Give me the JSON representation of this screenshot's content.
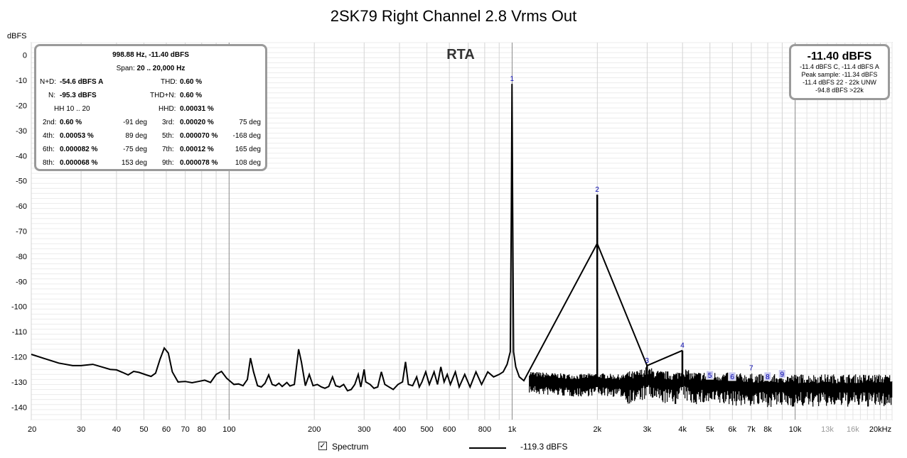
{
  "chart_data": {
    "type": "line",
    "title": "2SK79 Right Channel 2.8 Vrms Out",
    "ylabel": "dBFS",
    "xscale": "log",
    "xlim": [
      20,
      22000
    ],
    "ylim": [
      -145,
      5
    ],
    "y_ticks": [
      0,
      -10,
      -20,
      -30,
      -40,
      -50,
      -60,
      -70,
      -80,
      -90,
      -100,
      -110,
      -120,
      -130,
      -140
    ],
    "x_ticks": [
      {
        "v": 20,
        "label": "20"
      },
      {
        "v": 30,
        "label": "30"
      },
      {
        "v": 40,
        "label": "40"
      },
      {
        "v": 50,
        "label": "50"
      },
      {
        "v": 60,
        "label": "60"
      },
      {
        "v": 70,
        "label": "70"
      },
      {
        "v": 80,
        "label": "80"
      },
      {
        "v": 100,
        "label": "100"
      },
      {
        "v": 200,
        "label": "200"
      },
      {
        "v": 300,
        "label": "300"
      },
      {
        "v": 400,
        "label": "400"
      },
      {
        "v": 500,
        "label": "500"
      },
      {
        "v": 600,
        "label": "600"
      },
      {
        "v": 800,
        "label": "800"
      },
      {
        "v": 1000,
        "label": "1k"
      },
      {
        "v": 2000,
        "label": "2k"
      },
      {
        "v": 3000,
        "label": "3k"
      },
      {
        "v": 4000,
        "label": "4k"
      },
      {
        "v": 5000,
        "label": "5k"
      },
      {
        "v": 6000,
        "label": "6k"
      },
      {
        "v": 7000,
        "label": "7k"
      },
      {
        "v": 8000,
        "label": "8k"
      },
      {
        "v": 10000,
        "label": "10k"
      },
      {
        "v": 13000,
        "label": "13k",
        "faint": true
      },
      {
        "v": 16000,
        "label": "16k",
        "faint": true
      },
      {
        "v": 20000,
        "label": "20kHz"
      }
    ],
    "grid": true,
    "overlay_label": "RTA",
    "series": [
      {
        "name": "Spectrum",
        "color": "#000000",
        "points": [
          [
            20,
            -119
          ],
          [
            22,
            -120.5
          ],
          [
            25,
            -122.5
          ],
          [
            28,
            -123.5
          ],
          [
            30,
            -123.5
          ],
          [
            33,
            -123
          ],
          [
            36,
            -124.2
          ],
          [
            38,
            -125
          ],
          [
            40,
            -125.2
          ],
          [
            42,
            -126.2
          ],
          [
            44,
            -127.2
          ],
          [
            46,
            -125.8
          ],
          [
            48,
            -126.2
          ],
          [
            51,
            -127.2
          ],
          [
            53,
            -127.8
          ],
          [
            55,
            -126.5
          ],
          [
            57,
            -121
          ],
          [
            59,
            -116.5
          ],
          [
            61,
            -118.5
          ],
          [
            63,
            -126
          ],
          [
            66,
            -130
          ],
          [
            70,
            -129.8
          ],
          [
            74,
            -130.3
          ],
          [
            78,
            -129.8
          ],
          [
            82,
            -129.3
          ],
          [
            86,
            -130.2
          ],
          [
            90,
            -127
          ],
          [
            94,
            -125.8
          ],
          [
            98,
            -128.5
          ],
          [
            104,
            -131
          ],
          [
            108,
            -130.8
          ],
          [
            112,
            -131.5
          ],
          [
            116,
            -129
          ],
          [
            119,
            -120.5
          ],
          [
            122,
            -126
          ],
          [
            126,
            -131.5
          ],
          [
            130,
            -132
          ],
          [
            134,
            -130.5
          ],
          [
            138,
            -127.2
          ],
          [
            142,
            -131
          ],
          [
            146,
            -131.5
          ],
          [
            150,
            -130.5
          ],
          [
            154,
            -131.8
          ],
          [
            160,
            -130.2
          ],
          [
            164,
            -131.6
          ],
          [
            170,
            -131
          ],
          [
            176,
            -117
          ],
          [
            180,
            -122
          ],
          [
            186,
            -131.5
          ],
          [
            192,
            -127
          ],
          [
            198,
            -131.5
          ],
          [
            205,
            -131
          ],
          [
            212,
            -132
          ],
          [
            218,
            -132.5
          ],
          [
            225,
            -131.8
          ],
          [
            232,
            -128
          ],
          [
            238,
            -131.5
          ],
          [
            246,
            -132
          ],
          [
            254,
            -131
          ],
          [
            262,
            -133.5
          ],
          [
            270,
            -133
          ],
          [
            278,
            -131
          ],
          [
            286,
            -127
          ],
          [
            292,
            -132
          ],
          [
            300,
            -125
          ],
          [
            304,
            -130
          ],
          [
            315,
            -131
          ],
          [
            325,
            -132.5
          ],
          [
            335,
            -132
          ],
          [
            345,
            -126
          ],
          [
            355,
            -131
          ],
          [
            365,
            -131.8
          ],
          [
            380,
            -133
          ],
          [
            395,
            -131
          ],
          [
            410,
            -130
          ],
          [
            420,
            -122
          ],
          [
            430,
            -131
          ],
          [
            445,
            -131.5
          ],
          [
            460,
            -128
          ],
          [
            470,
            -132
          ],
          [
            480,
            -130
          ],
          [
            495,
            -126
          ],
          [
            510,
            -131
          ],
          [
            530,
            -126
          ],
          [
            545,
            -131
          ],
          [
            560,
            -124
          ],
          [
            575,
            -130
          ],
          [
            590,
            -127
          ],
          [
            605,
            -131
          ],
          [
            630,
            -126
          ],
          [
            650,
            -132
          ],
          [
            680,
            -127
          ],
          [
            710,
            -132
          ],
          [
            745,
            -126
          ],
          [
            780,
            -131
          ],
          [
            820,
            -126
          ],
          [
            860,
            -128
          ],
          [
            900,
            -127
          ],
          [
            930,
            -126
          ],
          [
            960,
            -123
          ],
          [
            985,
            -118
          ],
          [
            994,
            -60
          ],
          [
            999,
            -11.4
          ],
          [
            1004,
            -60
          ],
          [
            1012,
            -118
          ],
          [
            1030,
            -124
          ],
          [
            1060,
            -128
          ],
          [
            1100,
            -129.5
          ],
          [
            1200,
            -130.5
          ],
          [
            1400,
            -131
          ],
          [
            1700,
            -131.5
          ],
          [
            1985,
            -131
          ],
          [
            1996,
            -75
          ],
          [
            1998,
            -55.5
          ],
          [
            2000,
            -75
          ],
          [
            2012,
            -131
          ],
          [
            2300,
            -131.5
          ],
          [
            2700,
            -131.8
          ],
          [
            2990,
            -130
          ],
          [
            2998,
            -123.5
          ],
          [
            3006,
            -130
          ],
          [
            3300,
            -131.5
          ],
          [
            3800,
            -132
          ],
          [
            3990,
            -130
          ],
          [
            3997,
            -117.5
          ],
          [
            4004,
            -130
          ],
          [
            4300,
            -132
          ],
          [
            5000,
            -132
          ],
          [
            6000,
            -132.5
          ],
          [
            8000,
            -133
          ],
          [
            12000,
            -133
          ],
          [
            16000,
            -133
          ],
          [
            22000,
            -133
          ]
        ]
      }
    ],
    "markers": [
      {
        "label": "1",
        "f": 999,
        "db": -11.4
      },
      {
        "label": "2",
        "f": 1998,
        "db": -55.5
      },
      {
        "label": "3",
        "f": 2997,
        "db": -123.5
      },
      {
        "label": "4",
        "f": 3996,
        "db": -117.5
      },
      {
        "label": "5",
        "f": 4995,
        "db": -129.5,
        "boxed": true
      },
      {
        "label": "6",
        "f": 5994,
        "db": -130,
        "boxed": true
      },
      {
        "label": "7",
        "f": 6993,
        "db": -126.5
      },
      {
        "label": "8",
        "f": 7992,
        "db": -130,
        "boxed": true
      },
      {
        "label": "9",
        "f": 8991,
        "db": -129,
        "boxed": true
      }
    ]
  },
  "stats": {
    "header_freq": "998.88 Hz, -11.40 dBFS",
    "span_label": "Span:",
    "span_value": "20 .. 20,000 Hz",
    "nd_label": "N+D:",
    "nd_value": "-54.6 dBFS A",
    "thd_label": "THD:",
    "thd_value": "0.60 %",
    "n_label": "N:",
    "n_value": "-95.3 dBFS",
    "thdn_label": "THD+N:",
    "thdn_value": "0.60 %",
    "hh_label": "HH 10 .. 20",
    "hhd_label": "HHD:",
    "hhd_value": "0.00031 %",
    "harmonics": [
      {
        "l1": "2nd:",
        "v1": "0.60 %",
        "p1": "-91 deg",
        "l2": "3rd:",
        "v2": "0.00020 %",
        "p2": "75 deg"
      },
      {
        "l1": "4th:",
        "v1": "0.00053 %",
        "p1": "89 deg",
        "l2": "5th:",
        "v2": "0.000070 %",
        "p2": "-168 deg"
      },
      {
        "l1": "6th:",
        "v1": "0.000082 %",
        "p1": "-75 deg",
        "l2": "7th:",
        "v2": "0.00012 %",
        "p2": "165 deg"
      },
      {
        "l1": "8th:",
        "v1": "0.000068 %",
        "p1": "153 deg",
        "l2": "9th:",
        "v2": "0.000078 %",
        "p2": "108 deg"
      }
    ]
  },
  "level": {
    "main": "-11.40 dBFS",
    "line1": "-11.4 dBFS C, -11.4 dBFS A",
    "line2": "Peak sample: -11.34 dBFS",
    "line3": "-11.4 dBFS 22 - 22k UNW",
    "line4": "-94.8 dBFS >22k"
  },
  "legend": {
    "spectrum_label": "Spectrum",
    "checked": true,
    "value": "-119.3 dBFS"
  }
}
